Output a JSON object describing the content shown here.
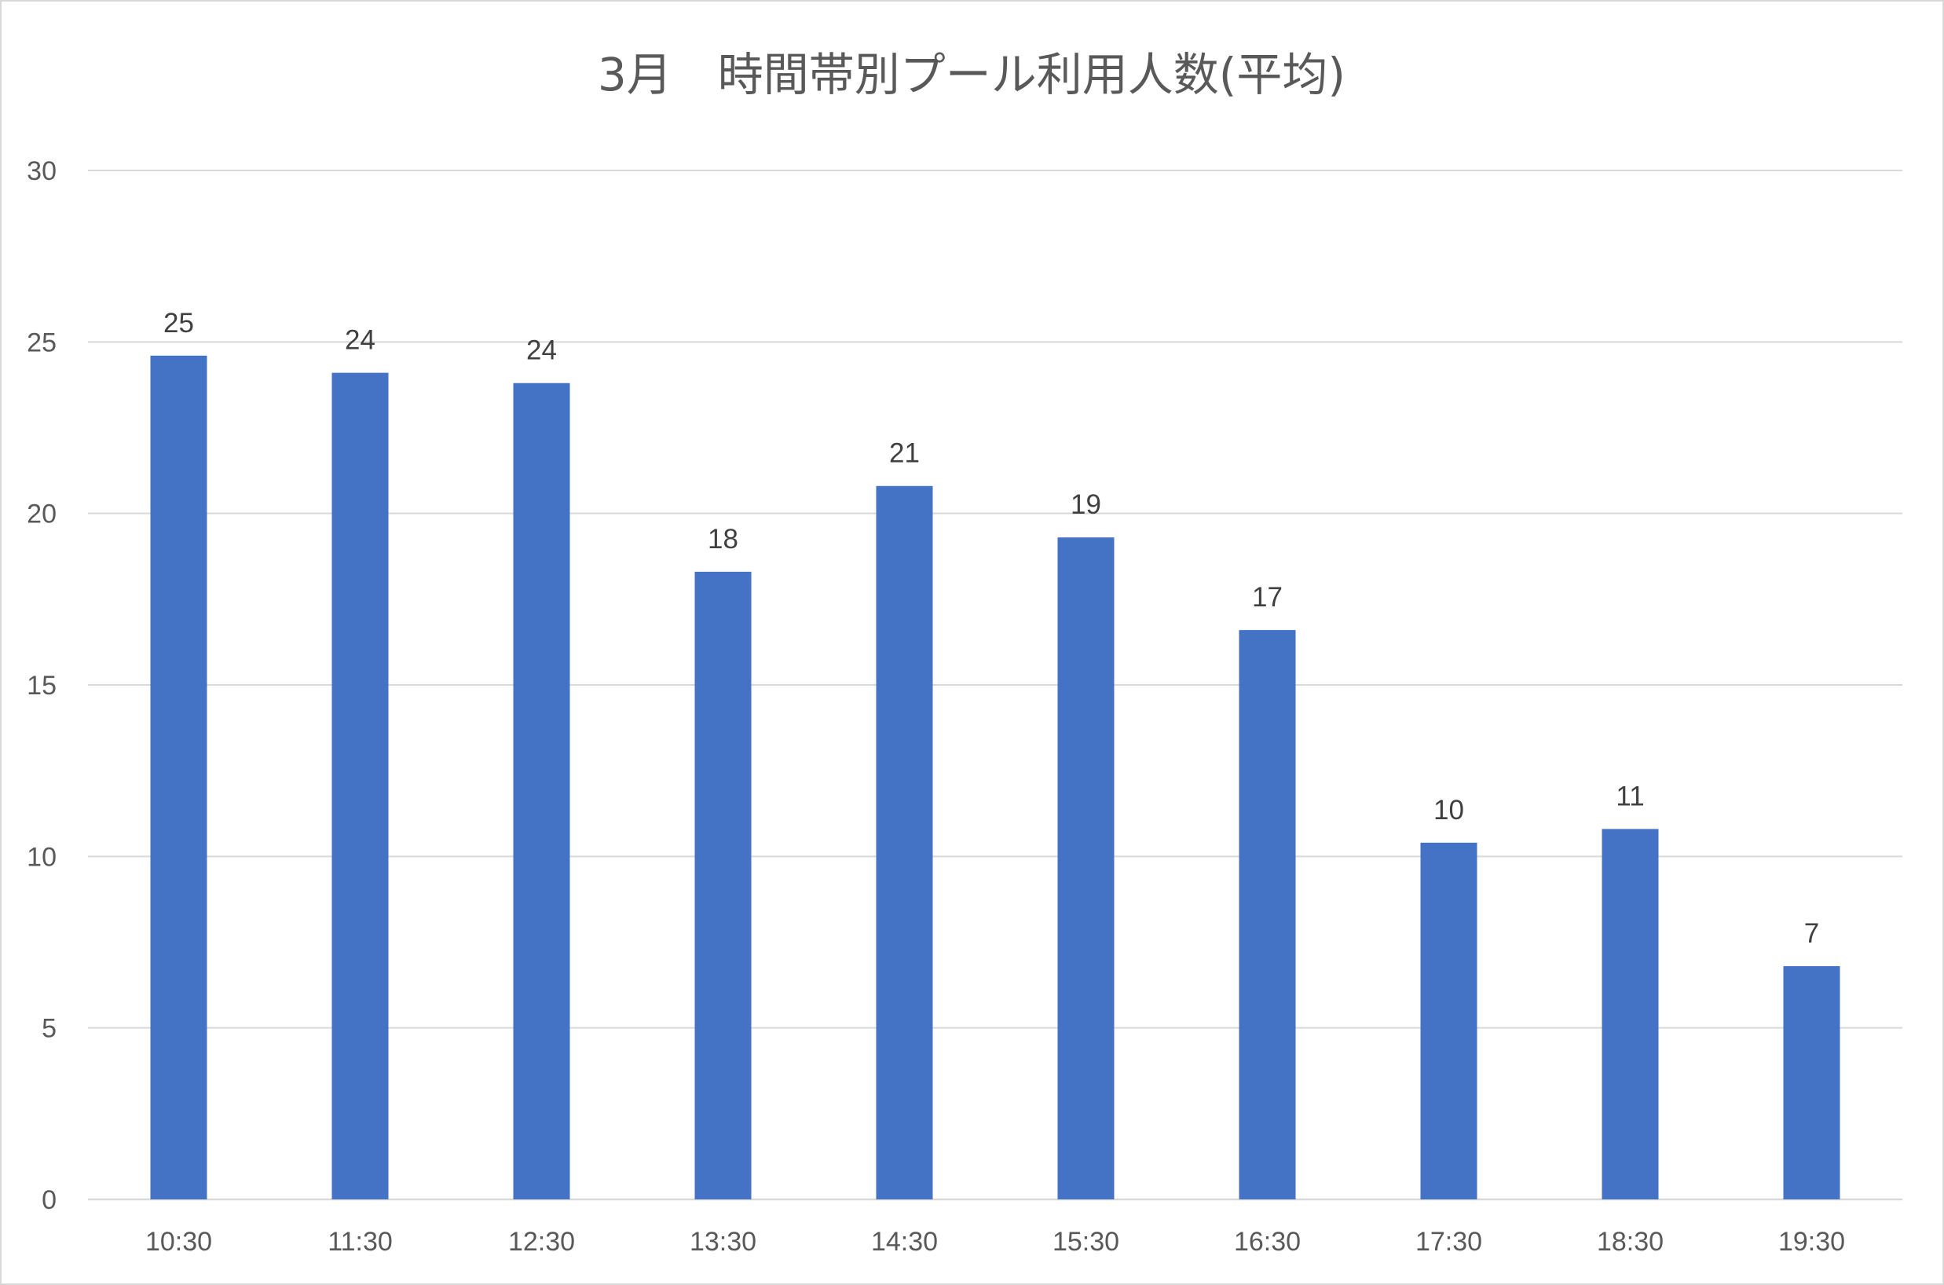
{
  "chart_data": {
    "type": "bar",
    "title": "3月　時間帯別プール利用人数(平均)",
    "xlabel": "",
    "ylabel": "",
    "categories": [
      "10:30",
      "11:30",
      "12:30",
      "13:30",
      "14:30",
      "15:30",
      "16:30",
      "17:30",
      "18:30",
      "19:30"
    ],
    "values": [
      24.6,
      24.1,
      23.8,
      18.3,
      20.8,
      19.3,
      16.6,
      10.4,
      10.8,
      6.8
    ],
    "data_labels": [
      "25",
      "24",
      "24",
      "18",
      "21",
      "19",
      "17",
      "10",
      "11",
      "7"
    ],
    "ylim": [
      0,
      30
    ],
    "yticks": [
      0,
      5,
      10,
      15,
      20,
      25,
      30
    ],
    "ytick_labels": [
      "0",
      "5",
      "10",
      "15",
      "20",
      "25",
      "30"
    ],
    "grid": true,
    "legend": "none",
    "bar_color": "#4472C4"
  }
}
